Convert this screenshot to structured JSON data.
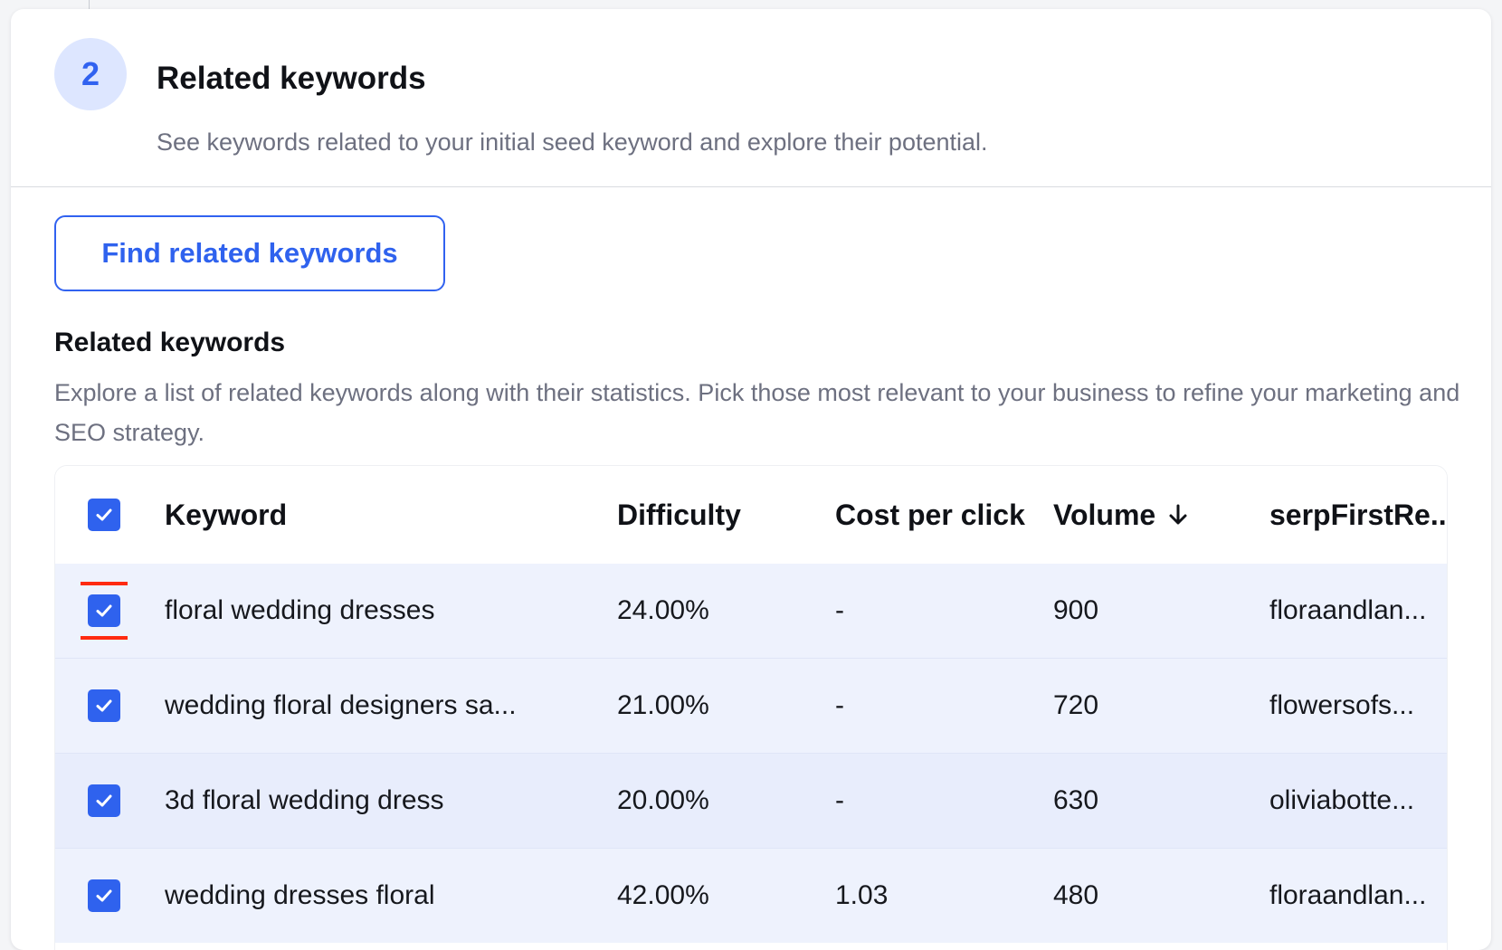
{
  "step": {
    "number": "2",
    "title": "Related keywords",
    "description": "See keywords related to your initial seed keyword and explore their potential."
  },
  "find_button_label": "Find related keywords",
  "section": {
    "title": "Related keywords",
    "description": "Explore a list of related keywords along with their statistics. Pick those most relevant to your business to refine your marketing and SEO strategy."
  },
  "table": {
    "headers": {
      "keyword": "Keyword",
      "difficulty": "Difficulty",
      "cpc": "Cost per click",
      "volume": "Volume",
      "serp": "serpFirstRe..."
    },
    "sort_icon": "arrow-down-icon",
    "select_all_checked": true,
    "rows": [
      {
        "keyword": "floral wedding dresses",
        "difficulty": "24.00%",
        "cpc": "-",
        "volume": "900",
        "serp": "floraandlan...",
        "checked": true,
        "highlighted": true
      },
      {
        "keyword": "wedding floral designers sa...",
        "difficulty": "21.00%",
        "cpc": "-",
        "volume": "720",
        "serp": "flowersofs...",
        "checked": true
      },
      {
        "keyword": "3d floral wedding dress",
        "difficulty": "20.00%",
        "cpc": "-",
        "volume": "630",
        "serp": "oliviabotte...",
        "checked": true
      },
      {
        "keyword": "wedding dresses floral",
        "difficulty": "42.00%",
        "cpc": "1.03",
        "volume": "480",
        "serp": "floraandlan...",
        "checked": true
      }
    ]
  },
  "colors": {
    "accent": "#2f62ee",
    "step_circle_bg": "#dde6ff",
    "row_bg_a": "#eef2fd",
    "row_bg_b": "#e8edfc",
    "focus_outline": "#ff2a10",
    "muted_text": "#6d7080"
  }
}
